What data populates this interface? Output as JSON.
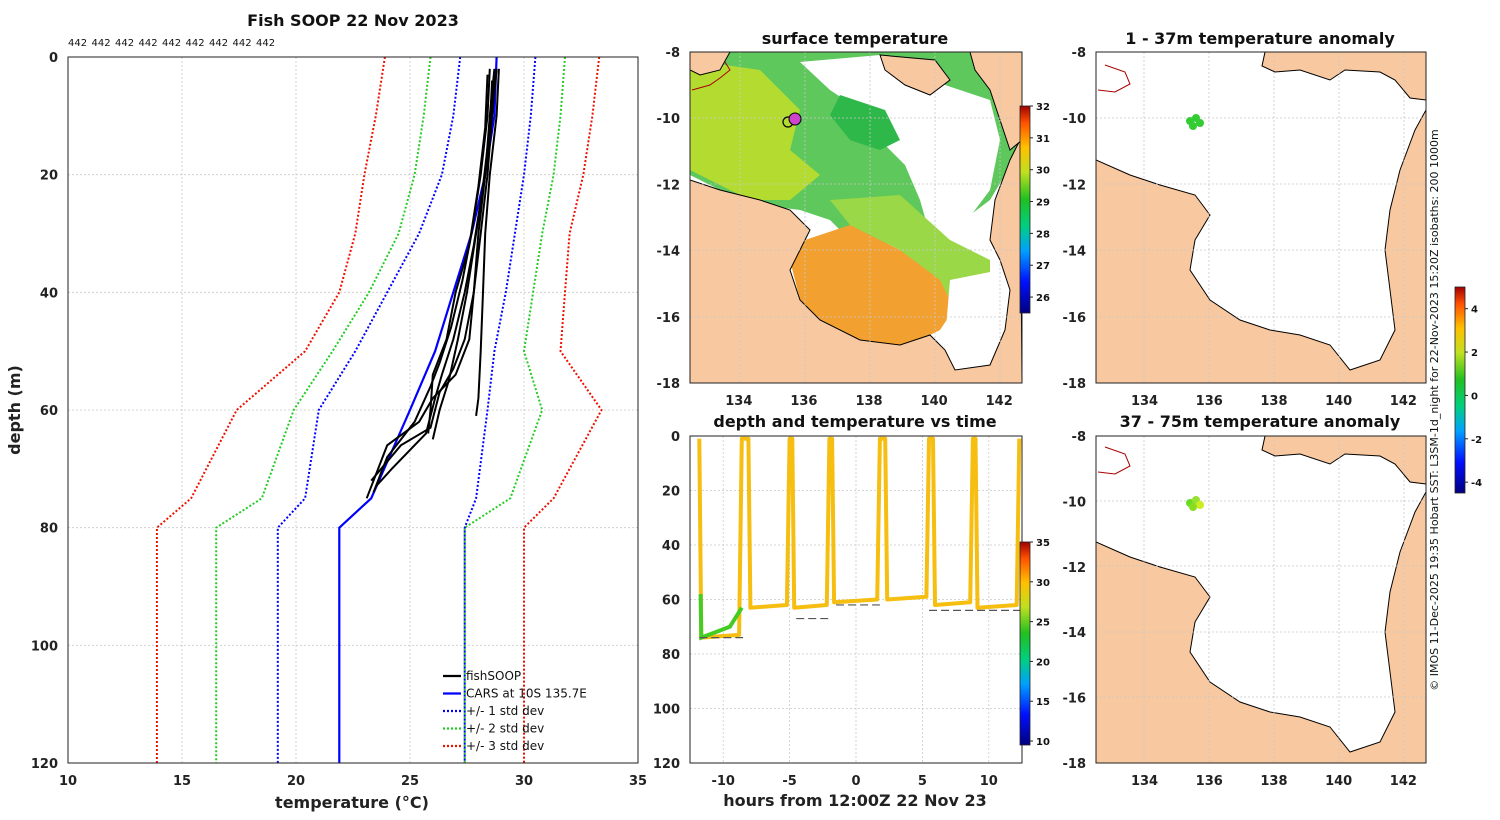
{
  "credit": "© IMOS 11-Dec-2025 19:35 Hobart SST: L3SM-1d_night for 22-Nov-2023 15:20Z isobaths: 200  1000m",
  "colors": {
    "fishsoop": "#000000",
    "cars": "#0000ff",
    "std1": "#0000ff",
    "std2": "#22cc22",
    "std3": "#ee1100",
    "land": "#f8c8a0",
    "coast": "#000000"
  },
  "chart_data": [
    {
      "id": "profile",
      "type": "line",
      "title": "Fish SOOP 22 Nov 2023",
      "count_labels": [
        "442",
        "442",
        "442",
        "442",
        "442",
        "442",
        "442",
        "442",
        "442"
      ],
      "xlabel": "temperature (°C)",
      "ylabel": "depth (m)",
      "xlim": [
        10,
        35
      ],
      "ylim": [
        0,
        120
      ],
      "xticks": [
        "10",
        "15",
        "20",
        "25",
        "30",
        "35"
      ],
      "yticks": [
        "0",
        "20",
        "40",
        "60",
        "80",
        "100",
        "120"
      ],
      "legend": [
        "fishSOOP",
        "CARS at 10S 135.7E",
        "+/- 1 std dev",
        "+/- 2 std dev",
        "+/- 3 std dev"
      ],
      "legend_position": "bottom-right",
      "depth": [
        0,
        10,
        20,
        30,
        40,
        50,
        60,
        75,
        80,
        120
      ],
      "cars_mean": [
        28.8,
        28.7,
        28.3,
        27.7,
        26.9,
        26.1,
        25.0,
        23.3,
        21.9,
        21.9
      ],
      "plus1": [
        30.5,
        30.3,
        30.0,
        29.6,
        29.2,
        28.7,
        28.4,
        27.9,
        27.4,
        27.4
      ],
      "minus1": [
        27.2,
        26.9,
        26.4,
        25.4,
        24.0,
        22.6,
        21.0,
        20.4,
        19.2,
        19.2
      ],
      "plus2": [
        31.8,
        31.6,
        31.3,
        30.8,
        30.4,
        30.0,
        30.8,
        29.4,
        27.4,
        27.4
      ],
      "minus2": [
        25.9,
        25.6,
        25.2,
        24.5,
        23.2,
        21.6,
        19.9,
        18.5,
        16.5,
        16.5
      ],
      "plus3": [
        33.3,
        33.0,
        32.6,
        32.0,
        31.8,
        31.6,
        33.4,
        31.3,
        30.0,
        30.0
      ],
      "minus3": [
        23.9,
        23.5,
        23.0,
        22.6,
        21.9,
        20.4,
        17.4,
        15.4,
        13.9,
        13.9
      ],
      "fishsoop_profiles": [
        {
          "t": [
            28.9,
            28.8,
            28.5,
            28.3,
            28.2,
            28.1,
            28.0,
            27.9
          ],
          "d": [
            2,
            10,
            20,
            30,
            40,
            50,
            58,
            61
          ]
        },
        {
          "t": [
            28.7,
            28.6,
            28.3,
            28.0,
            27.8,
            27.6,
            27.0,
            26.0,
            25.4,
            24.0,
            23.1
          ],
          "d": [
            3,
            10,
            20,
            30,
            40,
            48,
            54,
            58,
            62,
            66,
            75
          ]
        },
        {
          "t": [
            28.5,
            28.4,
            28.1,
            27.7,
            27.3,
            26.8,
            26.3,
            25.9,
            25.2,
            24.0,
            23.4
          ],
          "d": [
            2,
            10,
            20,
            30,
            38,
            46,
            52,
            56,
            62,
            68,
            74
          ]
        },
        {
          "t": [
            28.6,
            28.5,
            28.2,
            27.8,
            27.4,
            26.9,
            26.4,
            26.1,
            25.7,
            24.2,
            23.5
          ],
          "d": [
            4,
            12,
            22,
            32,
            40,
            48,
            54,
            58,
            64,
            70,
            73
          ]
        },
        {
          "t": [
            28.8,
            28.6,
            28.4,
            28.1,
            27.8,
            27.4,
            26.9,
            26.3,
            25.9,
            24.6,
            23.3
          ],
          "d": [
            2,
            10,
            20,
            30,
            40,
            48,
            53,
            57,
            63,
            66,
            72
          ]
        },
        {
          "t": [
            28.4,
            28.3,
            28.0,
            27.6,
            27.0,
            26.6,
            26.0,
            25.9,
            25.8
          ],
          "d": [
            3,
            12,
            22,
            32,
            40,
            48,
            54,
            60,
            64
          ]
        },
        {
          "t": [
            28.7,
            28.5,
            28.3,
            27.9,
            27.5,
            27.1,
            26.7,
            26.3,
            26.0
          ],
          "d": [
            2,
            10,
            20,
            30,
            40,
            48,
            55,
            60,
            65
          ]
        }
      ]
    },
    {
      "id": "sst",
      "type": "heatmap",
      "title": "surface temperature",
      "xlim": [
        132.5,
        142.7
      ],
      "ylim": [
        -18,
        -8
      ],
      "xticks": [
        "134",
        "136",
        "138",
        "140",
        "142"
      ],
      "yticks": [
        "-8",
        "-10",
        "-12",
        "-14",
        "-16",
        "-18"
      ],
      "colorbar_ticks": [
        "26",
        "27",
        "28",
        "29",
        "30",
        "31",
        "32"
      ],
      "colorbar_range": [
        25.5,
        32
      ]
    },
    {
      "id": "depthtime",
      "type": "scatter",
      "title": "depth and temperature vs time",
      "xlabel": "hours from 12:00Z 22 Nov 23",
      "xlim": [
        -12.5,
        12.5
      ],
      "ylim": [
        0,
        120
      ],
      "xticks": [
        "-10",
        "-5",
        "0",
        "5",
        "10"
      ],
      "yticks": [
        "0",
        "20",
        "40",
        "60",
        "80",
        "100",
        "120"
      ],
      "colorbar_ticks": [
        "10",
        "15",
        "20",
        "25",
        "30",
        "35"
      ],
      "colorbar_range": [
        9.5,
        35
      ],
      "bottom_depths": [
        {
          "x0": -11.8,
          "x1": -8.5,
          "d": 74
        },
        {
          "x0": -4.5,
          "x1": -2.0,
          "d": 67
        },
        {
          "x0": -1.5,
          "x1": 1.8,
          "d": 62
        },
        {
          "x0": 5.5,
          "x1": 12.5,
          "d": 64
        }
      ]
    },
    {
      "id": "anom1",
      "type": "heatmap",
      "title": "1 - 37m temperature anomaly",
      "xlim": [
        132.5,
        142.7
      ],
      "ylim": [
        -18,
        -8
      ],
      "xticks": [
        "134",
        "136",
        "138",
        "140",
        "142"
      ],
      "yticks": [
        "-8",
        "-10",
        "-12",
        "-14",
        "-16",
        "-18"
      ],
      "points": [
        {
          "lon": 135.5,
          "lat": -10.1,
          "anomaly": 0.3
        }
      ]
    },
    {
      "id": "anom2",
      "type": "heatmap",
      "title": "37 - 75m temperature anomaly",
      "xlim": [
        132.5,
        142.7
      ],
      "ylim": [
        -18,
        -8
      ],
      "xticks": [
        "134",
        "136",
        "138",
        "140",
        "142"
      ],
      "yticks": [
        "-8",
        "-10",
        "-12",
        "-14",
        "-16",
        "-18"
      ],
      "points": [
        {
          "lon": 135.5,
          "lat": -10.1,
          "anomaly": 0.8
        }
      ],
      "colorbar_ticks": [
        "-4",
        "-2",
        "0",
        "2",
        "4"
      ],
      "colorbar_range": [
        -4.5,
        5
      ]
    }
  ]
}
